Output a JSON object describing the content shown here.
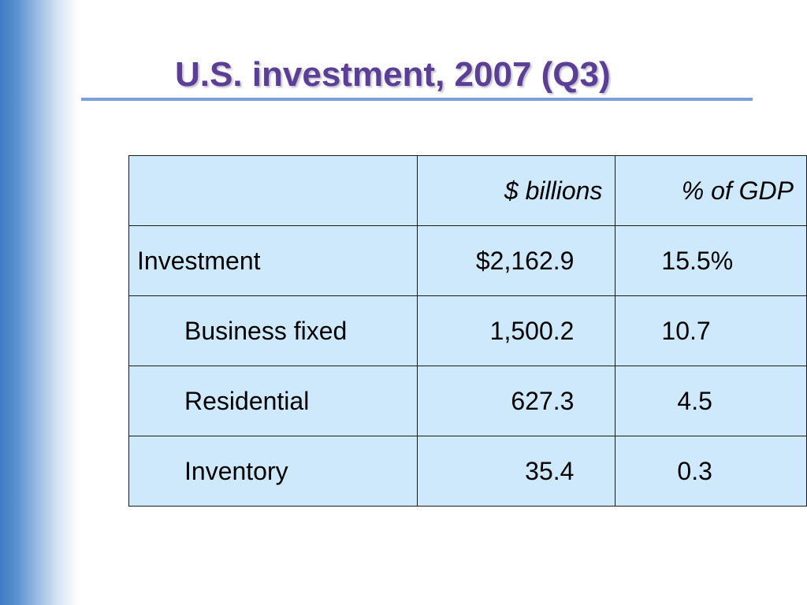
{
  "slide": {
    "title": "U.S. investment, 2007 (Q3)"
  },
  "table": {
    "headers": [
      "",
      "$ billions",
      "% of GDP"
    ],
    "rows": [
      {
        "label": "Investment",
        "billions": "$2,162.9",
        "pct_gdp": "15.5%"
      },
      {
        "label": "Business fixed",
        "billions": "1,500.2",
        "pct_gdp": "10.7"
      },
      {
        "label": "Residential",
        "billions": "627.3",
        "pct_gdp": "4.5"
      },
      {
        "label": "Inventory",
        "billions": "35.4",
        "pct_gdp": "0.3"
      }
    ]
  },
  "colors": {
    "title": "#5b3f95",
    "title_rule": "#7b9fd8",
    "table_fill": "#cfe9fc",
    "side_gradient": "#3f7cc4"
  }
}
